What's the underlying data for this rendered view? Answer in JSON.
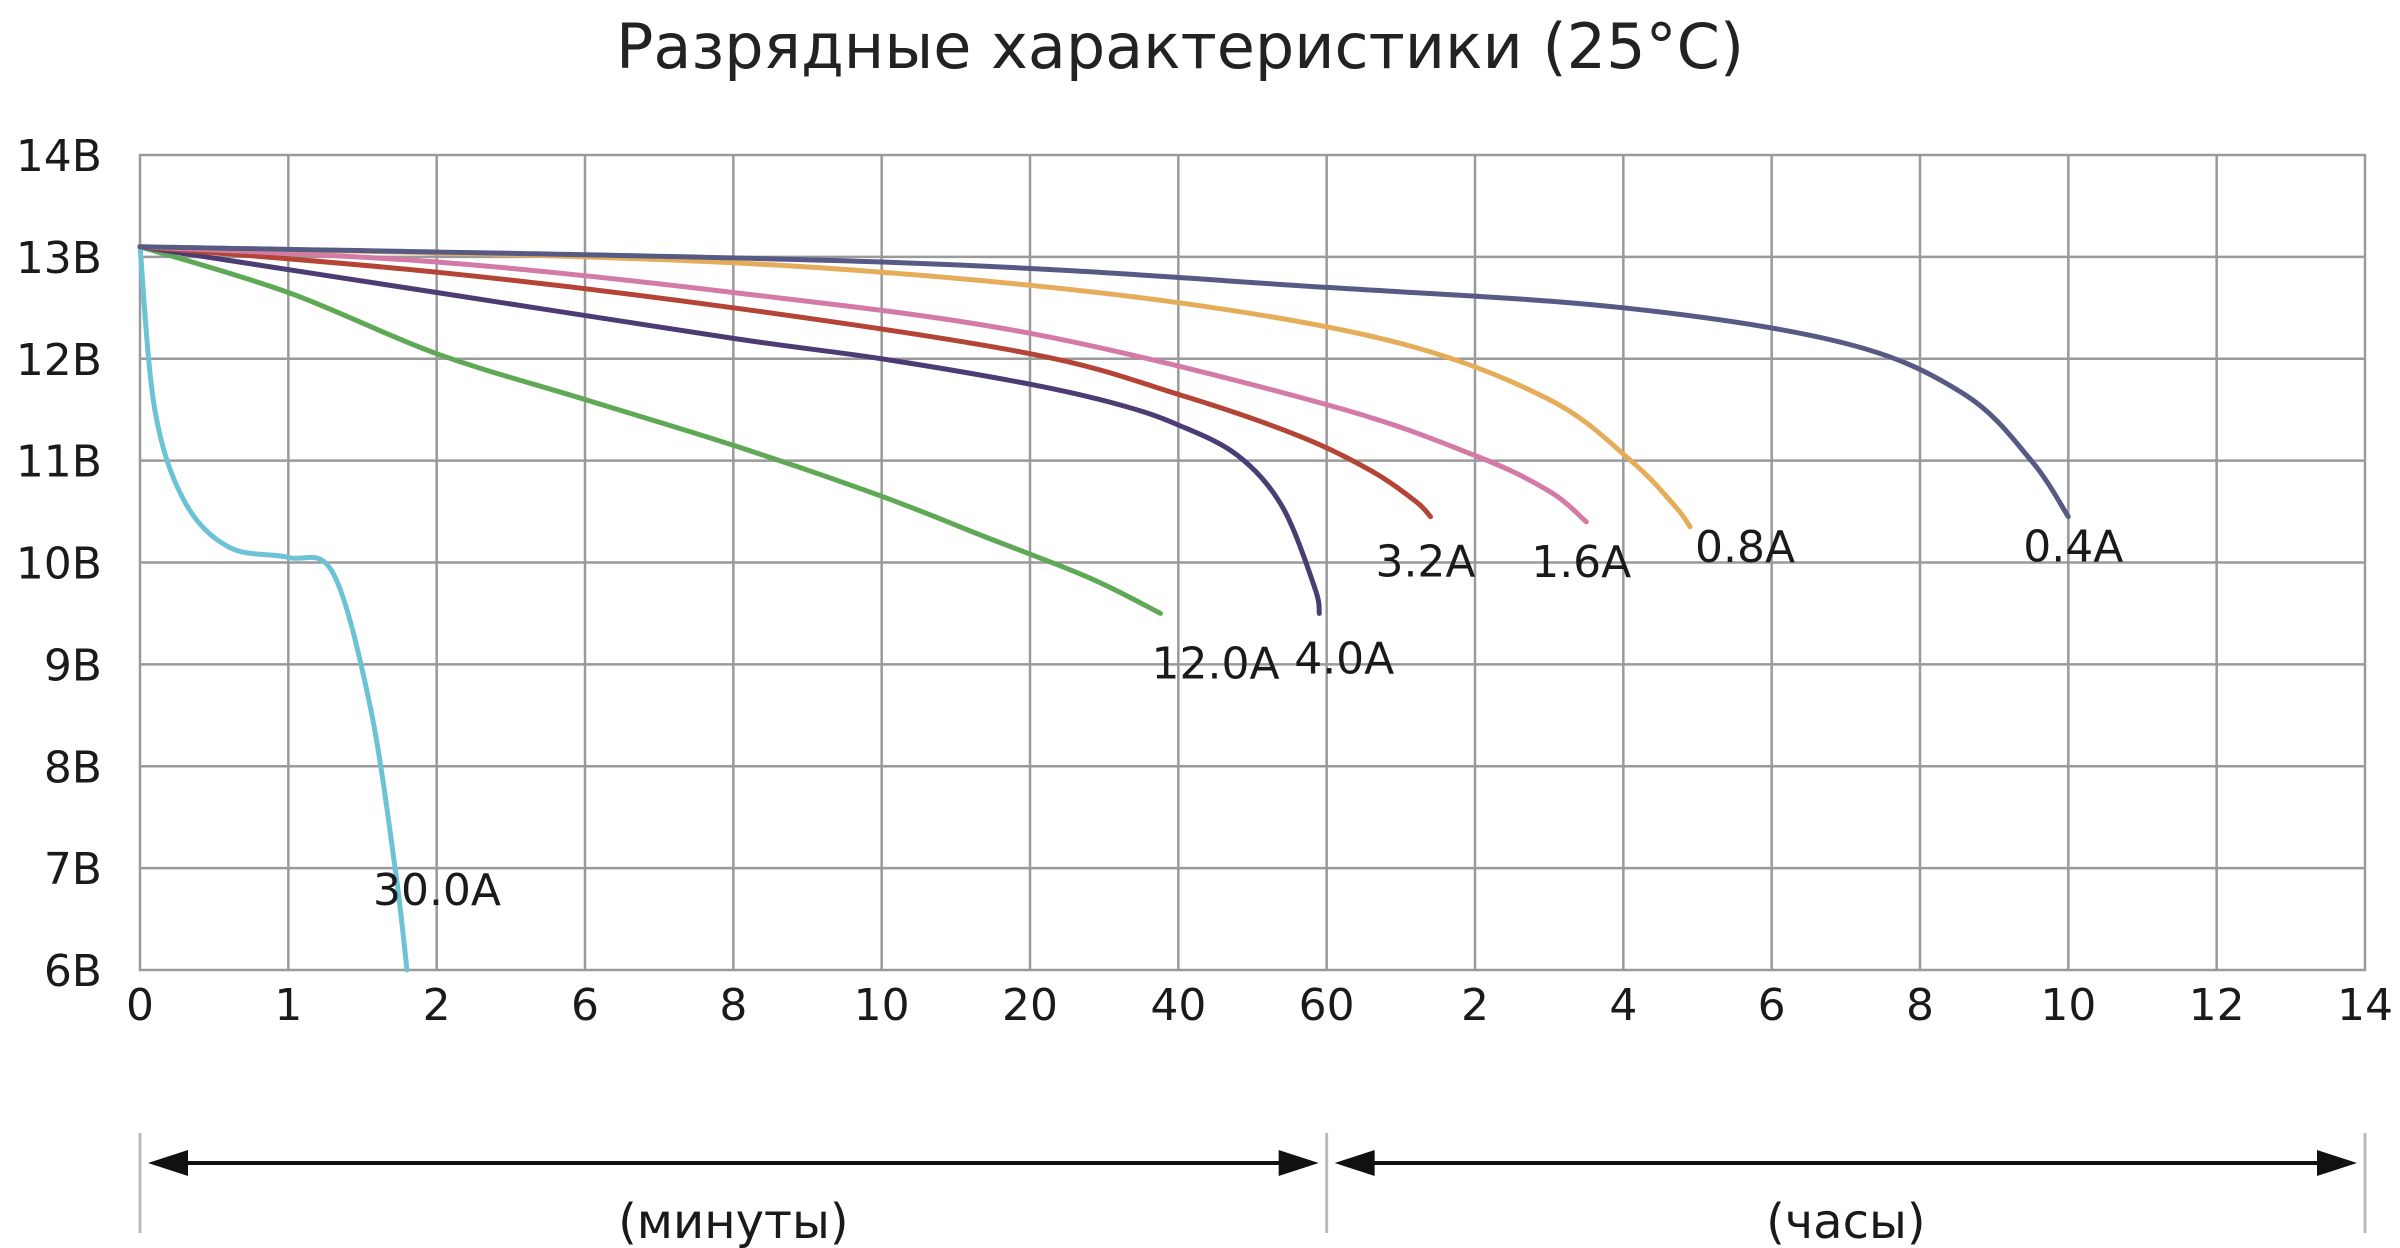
{
  "chart_data": {
    "type": "line",
    "title": "Разрядные характеристики (25°C)",
    "y_ticks": [
      "14В",
      "13В",
      "12В",
      "11В",
      "10В",
      "9В",
      "8В",
      "7В",
      "6В"
    ],
    "ylim": [
      6,
      14
    ],
    "x_ticks": [
      "0",
      "1",
      "2",
      "6",
      "8",
      "10",
      "20",
      "40",
      "60",
      "2",
      "4",
      "6",
      "8",
      "10",
      "12",
      "14"
    ],
    "x_ranges": [
      {
        "label": "(минуты)",
        "from_tick": 0,
        "to_tick": 8
      },
      {
        "label": "(часы)",
        "from_tick": 8,
        "to_tick": 15
      }
    ],
    "grid": true,
    "series": [
      {
        "name": "30.0A",
        "color": "#6cc3d5",
        "points": [
          [
            0,
            13.1
          ],
          [
            0.1,
            11.5
          ],
          [
            0.3,
            10.6
          ],
          [
            0.6,
            10.15
          ],
          [
            1.0,
            10.05
          ],
          [
            1.3,
            9.9
          ],
          [
            1.55,
            8.6
          ],
          [
            1.72,
            7.0
          ],
          [
            1.8,
            6.0
          ]
        ]
      },
      {
        "name": "12.0A",
        "color": "#5fa856",
        "points": [
          [
            0,
            13.1
          ],
          [
            1,
            12.65
          ],
          [
            2,
            12.05
          ],
          [
            3,
            11.6
          ],
          [
            4,
            11.15
          ],
          [
            5,
            10.65
          ],
          [
            5.7,
            10.25
          ],
          [
            6.4,
            9.85
          ],
          [
            6.88,
            9.5
          ]
        ]
      },
      {
        "name": "4.0A",
        "color": "#4b3d74",
        "points": [
          [
            0,
            13.1
          ],
          [
            2,
            12.65
          ],
          [
            4,
            12.2
          ],
          [
            5,
            12.0
          ],
          [
            6,
            11.75
          ],
          [
            6.6,
            11.55
          ],
          [
            7.0,
            11.35
          ],
          [
            7.4,
            11.05
          ],
          [
            7.7,
            10.55
          ],
          [
            7.92,
            9.75
          ],
          [
            7.95,
            9.5
          ]
        ]
      },
      {
        "name": "3.2A",
        "color": "#b34436",
        "points": [
          [
            0,
            13.1
          ],
          [
            2,
            12.85
          ],
          [
            4,
            12.5
          ],
          [
            6,
            12.05
          ],
          [
            7,
            11.65
          ],
          [
            7.8,
            11.25
          ],
          [
            8.3,
            10.9
          ],
          [
            8.6,
            10.6
          ],
          [
            8.7,
            10.45
          ]
        ]
      },
      {
        "name": "1.6A",
        "color": "#d47aa6",
        "points": [
          [
            0,
            13.1
          ],
          [
            2,
            12.95
          ],
          [
            4,
            12.65
          ],
          [
            6,
            12.25
          ],
          [
            8,
            11.55
          ],
          [
            9.0,
            11.05
          ],
          [
            9.5,
            10.7
          ],
          [
            9.75,
            10.4
          ]
        ]
      },
      {
        "name": "0.8A",
        "color": "#e5ad5a",
        "points": [
          [
            0,
            13.1
          ],
          [
            3,
            13.0
          ],
          [
            5,
            12.85
          ],
          [
            7,
            12.55
          ],
          [
            8.5,
            12.15
          ],
          [
            9.5,
            11.6
          ],
          [
            10.05,
            11.0
          ],
          [
            10.35,
            10.55
          ],
          [
            10.45,
            10.35
          ]
        ]
      },
      {
        "name": "0.4A",
        "color": "#575a85",
        "points": [
          [
            0,
            13.1
          ],
          [
            5,
            12.95
          ],
          [
            8,
            12.7
          ],
          [
            10,
            12.5
          ],
          [
            11.5,
            12.15
          ],
          [
            12.3,
            11.65
          ],
          [
            12.75,
            11.0
          ],
          [
            13.0,
            10.45
          ]
        ]
      }
    ]
  }
}
